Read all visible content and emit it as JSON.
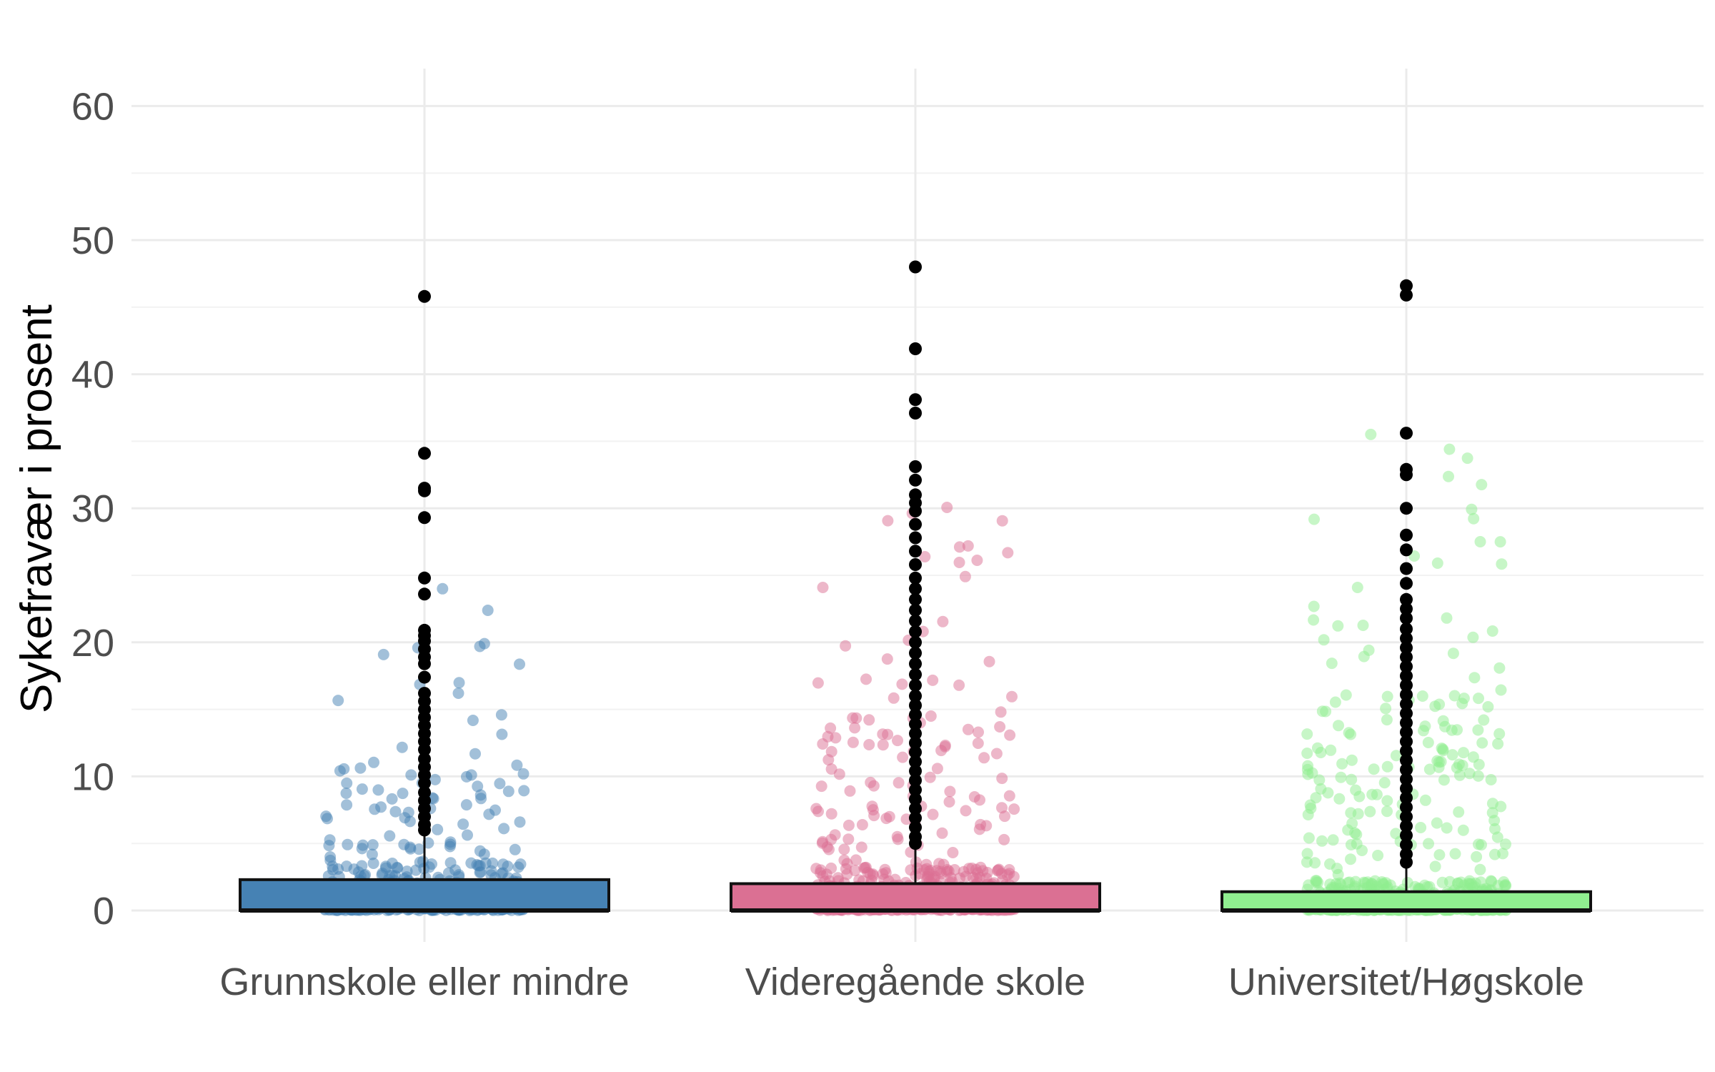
{
  "chart_data": {
    "type": "boxplot",
    "xlabel": "",
    "ylabel": "Sykefravær i prosent",
    "ylim": [
      -3,
      63
    ],
    "yticks": [
      0,
      10,
      20,
      30,
      40,
      50,
      60
    ],
    "grid": true,
    "categories": [
      "Grunnskole eller mindre",
      "Videregående skole",
      "Universitet/Høgskole"
    ],
    "colors": [
      "#4682b4",
      "#db7093",
      "#90ee90"
    ],
    "boxes": [
      {
        "category": "Grunnskole eller mindre",
        "q1": 0,
        "median": 0,
        "q3": 2.3,
        "whisker_low": 0,
        "whisker_high": 5.8,
        "outliers": [
          45.8,
          34.1,
          31.5,
          31.3,
          29.3,
          24.8,
          23.6,
          20.9,
          20.5,
          20.1,
          19.5,
          18.9,
          18.4,
          17.4,
          16.2,
          15.6,
          15.0,
          14.4,
          13.8,
          13.2,
          12.6,
          12.0,
          11.3,
          10.7,
          10.1,
          9.5,
          8.8,
          8.2,
          7.6,
          7.0,
          6.4,
          6.0
        ],
        "jitter_max": 25
      },
      {
        "category": "Videregående skole",
        "q1": 0,
        "median": 0,
        "q3": 2.0,
        "whisker_low": 0,
        "whisker_high": 4.8,
        "outliers": [
          48.0,
          41.9,
          38.1,
          37.1,
          33.1,
          32.1,
          31.0,
          30.4,
          29.8,
          28.8,
          27.8,
          26.8,
          25.8,
          24.8,
          24.0,
          23.2,
          22.4,
          21.6,
          20.8,
          20.0,
          19.2,
          18.4,
          17.6,
          16.8,
          16.0,
          15.3,
          14.6,
          13.9,
          13.2,
          12.5,
          11.8,
          11.1,
          10.4,
          9.7,
          9.0,
          8.3,
          7.6,
          6.9,
          6.2,
          5.5,
          5.0
        ],
        "jitter_max": 32
      },
      {
        "category": "Universitet/Høgskole",
        "q1": 0,
        "median": 0,
        "q3": 1.4,
        "whisker_low": 0,
        "whisker_high": 3.3,
        "outliers": [
          46.6,
          45.9,
          35.6,
          32.9,
          32.5,
          30.0,
          28.0,
          26.9,
          25.5,
          24.4,
          23.2,
          22.5,
          21.8,
          21.0,
          20.3,
          19.6,
          18.9,
          18.2,
          17.5,
          16.8,
          16.1,
          15.4,
          14.7,
          14.0,
          13.3,
          12.6,
          11.9,
          11.2,
          10.5,
          9.8,
          9.1,
          8.4,
          7.7,
          7.0,
          6.3,
          5.6,
          4.9,
          4.2,
          3.6
        ],
        "jitter_max": 36
      }
    ]
  }
}
